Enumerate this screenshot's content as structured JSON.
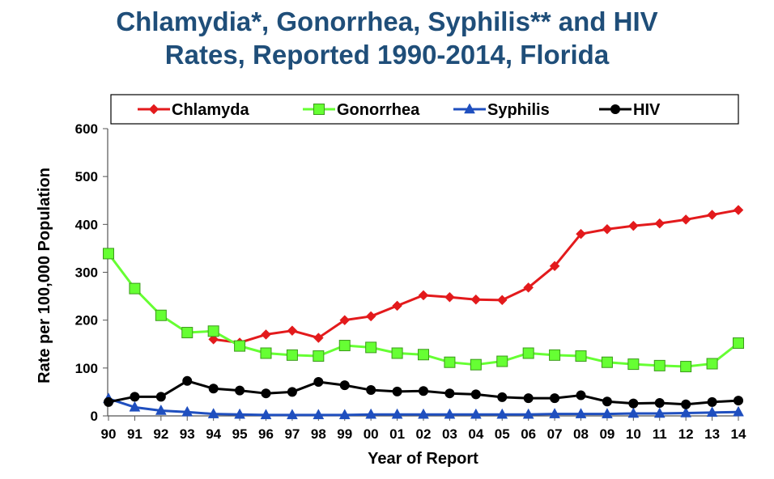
{
  "title_line1": "Chlamydia*, Gonorrhea, Syphilis** and HIV",
  "title_line2": "Rates, Reported 1990-2014, Florida",
  "chart_data": {
    "type": "line",
    "xlabel": "Year of Report",
    "ylabel": "Rate per 100,000 Population",
    "ylim": [
      0,
      600
    ],
    "yticks": [
      "0",
      "100",
      "200",
      "300",
      "400",
      "500",
      "600"
    ],
    "categories": [
      "90",
      "91",
      "92",
      "93",
      "94",
      "95",
      "96",
      "97",
      "98",
      "99",
      "00",
      "01",
      "02",
      "03",
      "04",
      "05",
      "06",
      "07",
      "08",
      "09",
      "10",
      "11",
      "12",
      "13",
      "14"
    ],
    "grid": false,
    "legend_position": "top",
    "series": [
      {
        "name": "Chlamyda",
        "color": "#E31A1C",
        "marker": "diamond",
        "values": [
          null,
          null,
          null,
          null,
          160,
          153,
          170,
          178,
          163,
          200,
          208,
          230,
          252,
          248,
          243,
          242,
          268,
          313,
          380,
          390,
          397,
          402,
          410,
          420,
          430
        ]
      },
      {
        "name": "Gonorrhea",
        "color": "#66FF33",
        "marker": "square",
        "values": [
          339,
          266,
          210,
          174,
          177,
          146,
          131,
          127,
          125,
          147,
          143,
          131,
          128,
          112,
          107,
          114,
          131,
          127,
          125,
          112,
          108,
          105,
          103,
          109,
          152
        ]
      },
      {
        "name": "Syphilis",
        "color": "#1F4FBF",
        "marker": "triangle",
        "values": [
          36,
          18,
          11,
          8,
          4,
          3,
          2,
          2,
          2,
          2,
          3,
          3,
          3,
          3,
          3,
          3,
          3,
          4,
          4,
          4,
          5,
          5,
          6,
          7,
          8
        ]
      },
      {
        "name": "HIV",
        "color": "#000000",
        "marker": "circle",
        "values": [
          29,
          40,
          40,
          73,
          57,
          53,
          47,
          50,
          71,
          64,
          54,
          51,
          52,
          47,
          45,
          39,
          37,
          37,
          43,
          30,
          26,
          27,
          24,
          29,
          32
        ]
      }
    ]
  }
}
